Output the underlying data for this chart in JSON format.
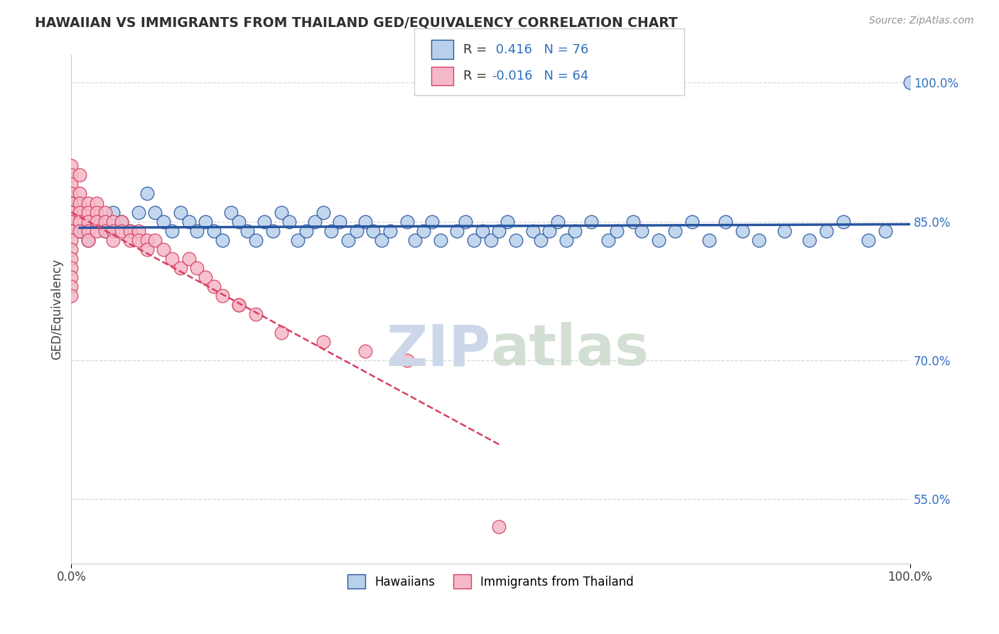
{
  "title": "HAWAIIAN VS IMMIGRANTS FROM THAILAND GED/EQUIVALENCY CORRELATION CHART",
  "source": "Source: ZipAtlas.com",
  "ylabel": "GED/Equivalency",
  "xlim": [
    0.0,
    100.0
  ],
  "ylim": [
    48.0,
    103.0
  ],
  "yticks": [
    55.0,
    70.0,
    85.0,
    100.0
  ],
  "ytick_labels": [
    "55.0%",
    "70.0%",
    "85.0%",
    "100.0%"
  ],
  "xtick_labels": [
    "0.0%",
    "100.0%"
  ],
  "legend_label1": "Hawaiians",
  "legend_label2": "Immigrants from Thailand",
  "r1": 0.416,
  "n1": 76,
  "r2": -0.016,
  "n2": 64,
  "blue_color": "#b8d0ea",
  "pink_color": "#f5b8c8",
  "blue_line_color": "#2855a0",
  "pink_line_color": "#d84060",
  "title_color": "#303030",
  "source_color": "#909090",
  "axis_color": "#cccccc",
  "grid_color": "#d8d8d8",
  "legend_r_color": "#3070c0",
  "watermark_color": "#ccd8ea",
  "blue_x": [
    1,
    2,
    3,
    4,
    5,
    6,
    7,
    8,
    9,
    10,
    11,
    12,
    13,
    14,
    15,
    16,
    17,
    18,
    19,
    20,
    21,
    22,
    23,
    24,
    25,
    26,
    27,
    28,
    29,
    30,
    31,
    32,
    33,
    34,
    35,
    36,
    37,
    38,
    40,
    41,
    42,
    43,
    44,
    46,
    47,
    48,
    49,
    50,
    51,
    52,
    53,
    55,
    56,
    57,
    58,
    59,
    60,
    62,
    64,
    65,
    67,
    68,
    70,
    72,
    74,
    76,
    78,
    80,
    82,
    85,
    88,
    90,
    92,
    95,
    97,
    100
  ],
  "blue_y": [
    84,
    83,
    85,
    84,
    86,
    85,
    84,
    86,
    88,
    86,
    85,
    84,
    86,
    85,
    84,
    85,
    84,
    83,
    86,
    85,
    84,
    83,
    85,
    84,
    86,
    85,
    83,
    84,
    85,
    86,
    84,
    85,
    83,
    84,
    85,
    84,
    83,
    84,
    85,
    83,
    84,
    85,
    83,
    84,
    85,
    83,
    84,
    83,
    84,
    85,
    83,
    84,
    83,
    84,
    85,
    83,
    84,
    85,
    83,
    84,
    85,
    84,
    83,
    84,
    85,
    83,
    85,
    84,
    83,
    84,
    83,
    84,
    85,
    83,
    84,
    100
  ],
  "pink_x": [
    0,
    0,
    0,
    0,
    0,
    0,
    0,
    0,
    0,
    0,
    0,
    0,
    0,
    0,
    0,
    0,
    0,
    0,
    1,
    1,
    1,
    1,
    1,
    1,
    2,
    2,
    2,
    2,
    2,
    3,
    3,
    3,
    3,
    4,
    4,
    4,
    5,
    5,
    5,
    6,
    6,
    7,
    7,
    8,
    8,
    9,
    9,
    10,
    11,
    12,
    13,
    14,
    15,
    16,
    17,
    18,
    20,
    22,
    25,
    30,
    35,
    40,
    51,
    20
  ],
  "pink_y": [
    91,
    90,
    89,
    88,
    87,
    87,
    86,
    86,
    85,
    84,
    84,
    83,
    82,
    81,
    80,
    79,
    78,
    77,
    90,
    88,
    87,
    86,
    85,
    84,
    87,
    86,
    85,
    84,
    83,
    87,
    86,
    85,
    84,
    86,
    85,
    84,
    85,
    84,
    83,
    85,
    84,
    84,
    83,
    84,
    83,
    83,
    82,
    83,
    82,
    81,
    80,
    81,
    80,
    79,
    78,
    77,
    76,
    75,
    73,
    72,
    71,
    70,
    52,
    76
  ]
}
